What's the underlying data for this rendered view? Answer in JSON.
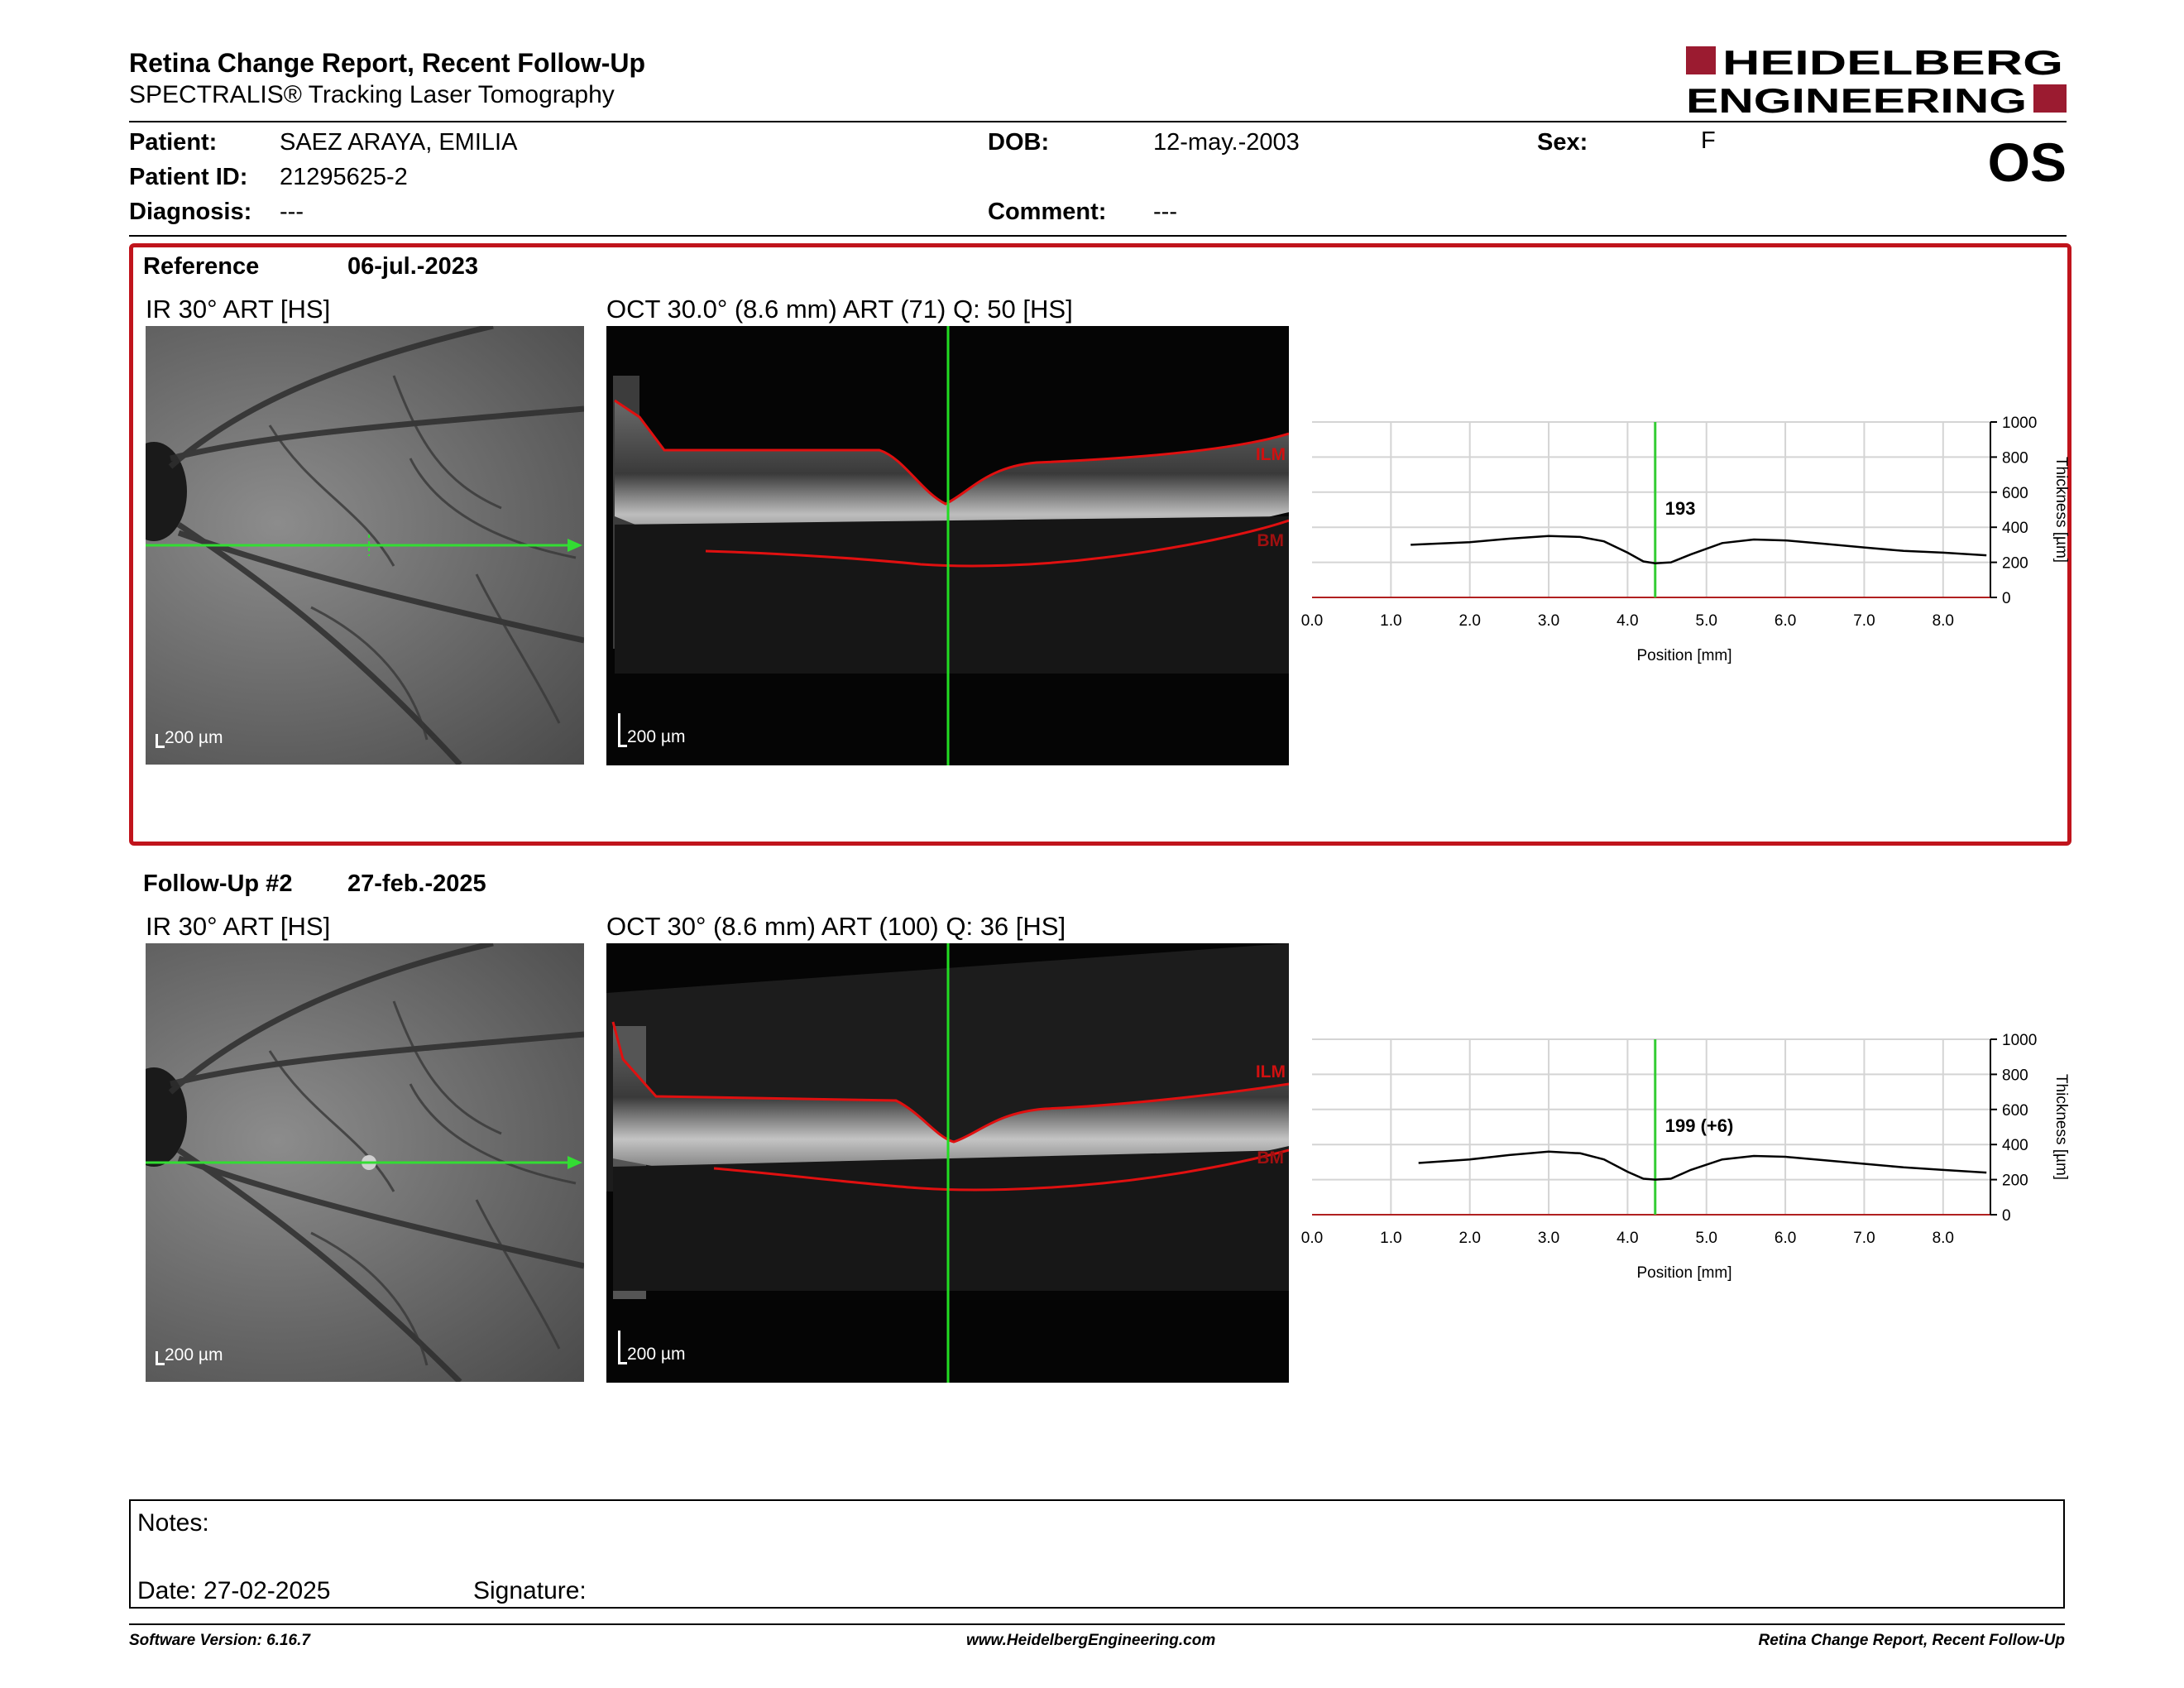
{
  "header": {
    "title": "Retina Change Report, Recent Follow-Up",
    "subtitle": "SPECTRALIS® Tracking Laser Tomography",
    "logo_line1": "HEIDELBERG",
    "logo_line2": "ENGINEERING",
    "eye": "OS"
  },
  "patient": {
    "name_label": "Patient:",
    "name": "SAEZ ARAYA, EMILIA",
    "id_label": "Patient ID:",
    "id": "21295625-2",
    "diagnosis_label": "Diagnosis:",
    "diagnosis": "---",
    "dob_label": "DOB:",
    "dob": "12-may.-2003",
    "comment_label": "Comment:",
    "comment": "---",
    "sex_label": "Sex:",
    "sex": "F"
  },
  "reference": {
    "label": "Reference",
    "date": "06-jul.-2023",
    "ir_label": "IR 30° ART [HS]",
    "oct_label": "OCT 30.0° (8.6 mm) ART (71) Q: 50 [HS]",
    "scale": "200 µm",
    "ilm": "ILM",
    "bm": "BM"
  },
  "followup": {
    "label": "Follow-Up #2",
    "date": "27-feb.-2025",
    "ir_label": "IR 30° ART [HS]",
    "oct_label": "OCT 30° (8.6 mm) ART (100) Q: 36 [HS]",
    "scale": "200 µm",
    "ilm": "ILM",
    "bm": "BM"
  },
  "chart_data": [
    {
      "type": "line",
      "xlabel": "Position [mm]",
      "ylabel": "Thickness [µm]",
      "xlim": [
        0,
        8.6
      ],
      "ylim": [
        0,
        1000
      ],
      "xticks": [
        "0.0",
        "1.0",
        "2.0",
        "3.0",
        "4.0",
        "5.0",
        "6.0",
        "7.0",
        "8.0"
      ],
      "yticks": [
        "0",
        "200",
        "400",
        "600",
        "800",
        "1000"
      ],
      "cursor_x": 4.35,
      "cursor_label": "193",
      "grid": true,
      "x": [
        1.25,
        2.0,
        2.5,
        3.0,
        3.4,
        3.7,
        4.0,
        4.2,
        4.35,
        4.55,
        4.8,
        5.2,
        5.6,
        6.0,
        6.5,
        7.0,
        7.5,
        8.0,
        8.55
      ],
      "y": [
        300,
        315,
        335,
        350,
        345,
        320,
        255,
        205,
        195,
        200,
        245,
        310,
        330,
        325,
        305,
        285,
        265,
        255,
        240
      ],
      "color": "#000000",
      "accent": "#33cc33"
    },
    {
      "type": "line",
      "xlabel": "Position [mm]",
      "ylabel": "Thickness [µm]",
      "xlim": [
        0,
        8.6
      ],
      "ylim": [
        0,
        1000
      ],
      "xticks": [
        "0.0",
        "1.0",
        "2.0",
        "3.0",
        "4.0",
        "5.0",
        "6.0",
        "7.0",
        "8.0"
      ],
      "yticks": [
        "0",
        "200",
        "400",
        "600",
        "800",
        "1000"
      ],
      "cursor_x": 4.35,
      "cursor_label": "199 (+6)",
      "grid": true,
      "x": [
        1.35,
        2.0,
        2.5,
        3.0,
        3.4,
        3.7,
        4.0,
        4.2,
        4.35,
        4.55,
        4.8,
        5.2,
        5.6,
        6.0,
        6.5,
        7.0,
        7.5,
        8.0,
        8.55
      ],
      "y": [
        295,
        315,
        340,
        360,
        350,
        315,
        245,
        205,
        200,
        205,
        255,
        315,
        335,
        330,
        310,
        290,
        270,
        255,
        240
      ],
      "color": "#000000",
      "accent": "#33cc33"
    }
  ],
  "notes": {
    "notes_label": "Notes:",
    "date_label": "Date: 27-02-2025",
    "signature_label": "Signature:"
  },
  "footer": {
    "left": "Software Version: 6.16.7",
    "center": "www.HeidelbergEngineering.com",
    "right": "Retina Change Report, Recent Follow-Up"
  }
}
